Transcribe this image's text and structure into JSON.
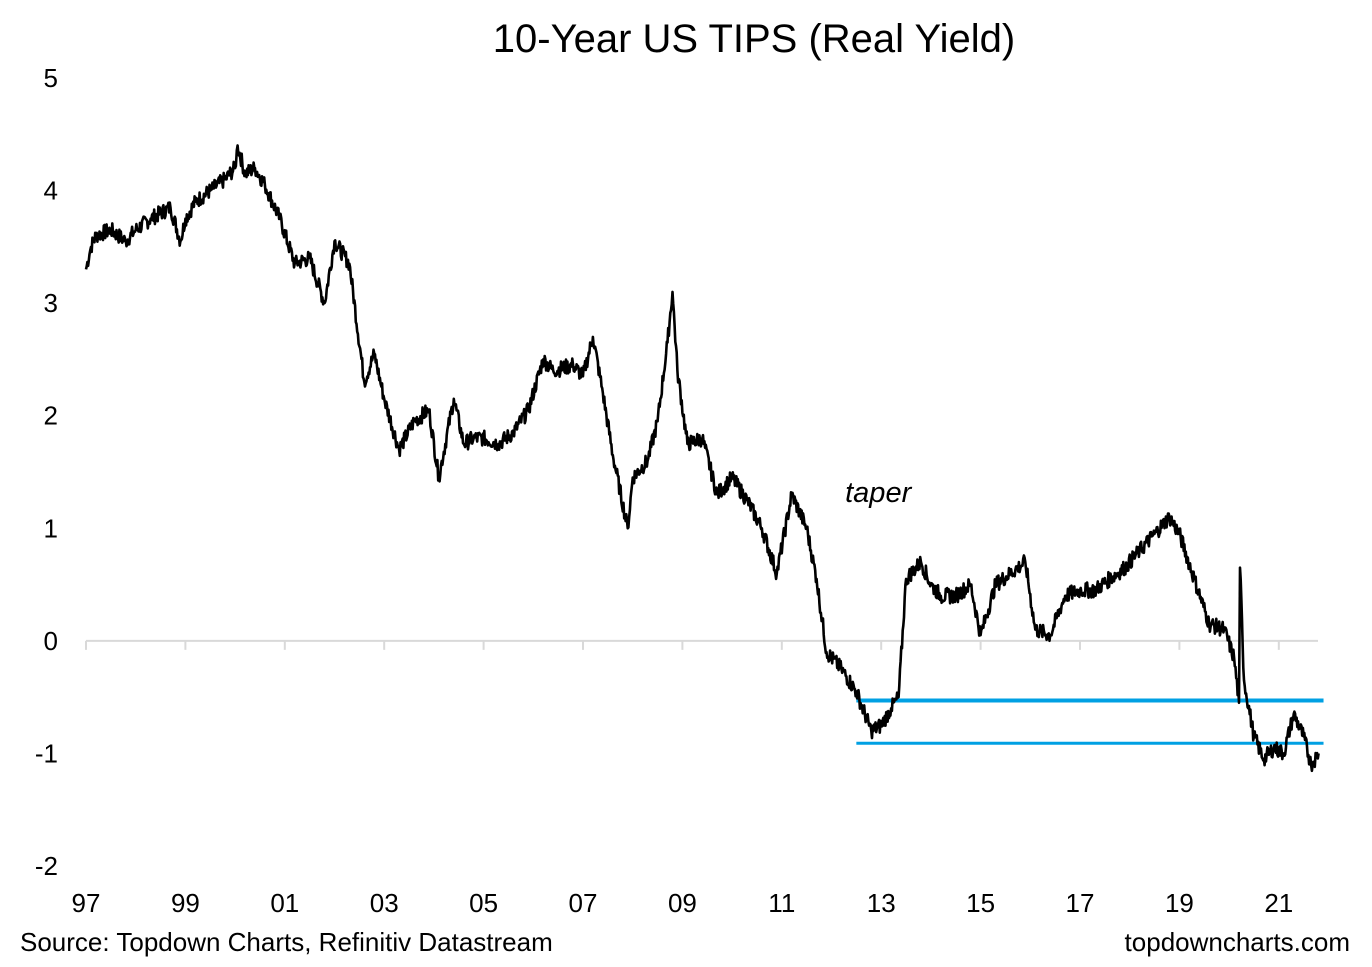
{
  "chart_data": {
    "type": "line",
    "title": "10-Year US TIPS (Real Yield)",
    "xlabel": "",
    "ylabel": "",
    "xlim": [
      1997,
      2021.9
    ],
    "ylim": [
      -2,
      5
    ],
    "y_ticks": [
      "5",
      "4",
      "3",
      "2",
      "1",
      "0",
      "-1",
      "-2"
    ],
    "x_ticks": [
      "97",
      "99",
      "01",
      "03",
      "05",
      "07",
      "09",
      "11",
      "13",
      "15",
      "17",
      "19",
      "21"
    ],
    "grid": false,
    "legend": "none",
    "line_color": "#000000",
    "zero_line_color": "#d9d9d9",
    "series": [
      {
        "x": [
          1997.0,
          1997.1,
          1997.2,
          1997.5,
          1997.8,
          1998.0,
          1998.3,
          1998.7,
          1998.9,
          1999.0,
          1999.2,
          1999.5,
          1999.8,
          2000.0,
          2000.05,
          2000.2,
          2000.4,
          2000.6,
          2000.9,
          2001.2,
          2001.5,
          2001.8,
          2002.0,
          2002.3,
          2002.6,
          2002.8,
          2003.0,
          2003.3,
          2003.6,
          2003.9,
          2004.1,
          2004.4,
          2004.6,
          2004.8,
          2005.0,
          2005.3,
          2005.6,
          2005.9,
          2006.2,
          2006.4,
          2006.8,
          2007.0,
          2007.2,
          2007.4,
          2007.6,
          2007.9,
          2008.0,
          2008.3,
          2008.5,
          2008.7,
          2008.8,
          2008.9,
          2009.1,
          2009.4,
          2009.7,
          2010.0,
          2010.3,
          2010.6,
          2010.9,
          2011.2,
          2011.5,
          2011.7,
          2011.9,
          2012.2,
          2012.5,
          2012.8,
          2013.0,
          2013.2,
          2013.35,
          2013.5,
          2013.8,
          2014.0,
          2014.2,
          2014.5,
          2014.8,
          2015.0,
          2015.3,
          2015.6,
          2015.9,
          2016.1,
          2016.4,
          2016.7,
          2017.0,
          2017.3,
          2017.6,
          2017.9,
          2018.2,
          2018.5,
          2018.8,
          2019.0,
          2019.3,
          2019.6,
          2019.9,
          2020.1,
          2020.2,
          2020.22,
          2020.3,
          2020.5,
          2020.7,
          2020.9,
          2021.1,
          2021.3,
          2021.5,
          2021.65,
          2021.8
        ],
        "values": [
          3.3,
          3.5,
          3.6,
          3.65,
          3.55,
          3.65,
          3.75,
          3.85,
          3.55,
          3.75,
          3.9,
          4.0,
          4.1,
          4.2,
          4.4,
          4.15,
          4.2,
          4.05,
          3.75,
          3.35,
          3.4,
          3.0,
          3.55,
          3.35,
          2.3,
          2.55,
          2.15,
          1.7,
          1.95,
          2.05,
          1.45,
          2.15,
          1.75,
          1.8,
          1.8,
          1.75,
          1.85,
          2.05,
          2.5,
          2.4,
          2.45,
          2.35,
          2.7,
          2.2,
          1.65,
          1.0,
          1.45,
          1.6,
          1.95,
          2.65,
          3.1,
          2.4,
          1.75,
          1.8,
          1.3,
          1.45,
          1.25,
          1.0,
          0.6,
          1.3,
          1.0,
          0.55,
          -0.1,
          -0.25,
          -0.45,
          -0.8,
          -0.75,
          -0.6,
          -0.5,
          0.55,
          0.7,
          0.5,
          0.4,
          0.4,
          0.5,
          0.05,
          0.5,
          0.6,
          0.7,
          0.1,
          0.05,
          0.4,
          0.45,
          0.45,
          0.55,
          0.65,
          0.8,
          0.95,
          1.1,
          0.95,
          0.55,
          0.15,
          0.1,
          -0.15,
          -0.55,
          0.65,
          -0.35,
          -0.85,
          -1.05,
          -0.95,
          -1.0,
          -0.65,
          -0.85,
          -1.1,
          -1.0
        ]
      }
    ],
    "annotations": [
      {
        "text": "taper",
        "x": 2013.2,
        "y": 1.1
      }
    ],
    "reference_lines": [
      {
        "y": -0.53,
        "x_start": 2012.5,
        "x_end": 2021.9,
        "color": "#00a0e3"
      },
      {
        "y": -0.91,
        "x_start": 2012.5,
        "x_end": 2021.9,
        "color": "#00a0e3"
      }
    ]
  },
  "footer": {
    "source": "Source: Topdown Charts, Refinitiv Datastream",
    "brand": "topdowncharts.com"
  }
}
